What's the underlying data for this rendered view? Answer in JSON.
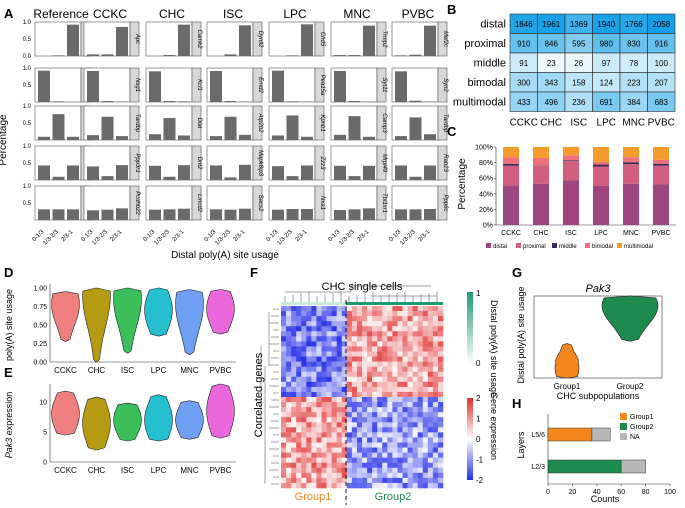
{
  "colors": {
    "types": [
      "#f08080",
      "#b59a14",
      "#3cbf5a",
      "#25bfcf",
      "#6f9ff2",
      "#ea68dc"
    ],
    "dist": {
      "distal": "#9e4682",
      "proximal": "#d35f7e",
      "middle": "#3a2a5a",
      "bimodal": "#f0707a",
      "multimodal": "#f59a2c"
    },
    "group1": "#f4861e",
    "group2": "#1f8a4e",
    "na": "#b8b8b8",
    "bar": "#6a6a6a"
  },
  "panel_labels": {
    "A": "A",
    "B": "B",
    "C": "C",
    "D": "D",
    "E": "E",
    "F": "F",
    "G": "G",
    "H": "H"
  },
  "chart_data": [
    {
      "id": "A",
      "type": "bar",
      "columns": [
        "Reference",
        "CCKC",
        "CHC",
        "ISC",
        "LPC",
        "MNC",
        "PVBC"
      ],
      "rows": [
        "distal",
        "proximal",
        "middle",
        "bimodal",
        "multimodal"
      ],
      "categories": [
        "0-1/3",
        "1/3-2/3",
        "2/3-1"
      ],
      "ylabel": "Percentage",
      "xlabel": "Distal poly(A) site usage",
      "yticks": [
        "0.0",
        "0.5",
        "1.0"
      ],
      "ylim": [
        0,
        1
      ],
      "gene_labels": [
        [
          "distal",
          "Apc",
          "Camk2",
          "Dynll2",
          "Chd5",
          "Trmp2",
          "Mef2c"
        ],
        [
          "proximal",
          "Nsg1",
          "Kcl1",
          "Emd2",
          "Pea15a",
          "Syt11",
          "Syn2"
        ],
        [
          "middle",
          "Tardbp",
          "Dlat",
          "Atp2b2",
          "Kpnb1",
          "Camp3",
          "Tardbp"
        ],
        [
          "bimodal",
          "Ppp3r1",
          "Dnt2",
          "Mapk8ip3",
          "Zzz3",
          "Mrpl49",
          "Rab23"
        ],
        [
          "multimodal",
          "Pcdhb22",
          "Lmcd2",
          "Sacs2",
          "Nxa1",
          "Tbl1xr1",
          "Ppp6c"
        ]
      ],
      "values": [
        [
          [
            0,
            0.02,
            0.97
          ],
          [
            0.05,
            0.05,
            0.9
          ],
          [
            0,
            0.03,
            0.97
          ],
          [
            0,
            0.05,
            0.95
          ],
          [
            0,
            0.02,
            0.98
          ],
          [
            0.03,
            0.03,
            0.94
          ],
          [
            0.02,
            0.04,
            0.94
          ]
        ],
        [
          [
            0.97,
            0.02,
            0
          ],
          [
            0.96,
            0.03,
            0.01
          ],
          [
            0.95,
            0.03,
            0.02
          ],
          [
            0.96,
            0.03,
            0.01
          ],
          [
            0.97,
            0.02,
            0.01
          ],
          [
            0.96,
            0.03,
            0.01
          ],
          [
            0.95,
            0.04,
            0.01
          ]
        ],
        [
          [
            0.1,
            0.8,
            0.1
          ],
          [
            0.15,
            0.72,
            0.12
          ],
          [
            0.18,
            0.68,
            0.14
          ],
          [
            0.12,
            0.72,
            0.16
          ],
          [
            0.14,
            0.76,
            0.1
          ],
          [
            0.16,
            0.74,
            0.1
          ],
          [
            0.12,
            0.7,
            0.18
          ]
        ],
        [
          [
            0.45,
            0.1,
            0.45
          ],
          [
            0.42,
            0.12,
            0.46
          ],
          [
            0.44,
            0.1,
            0.46
          ],
          [
            0.45,
            0.08,
            0.47
          ],
          [
            0.43,
            0.12,
            0.45
          ],
          [
            0.44,
            0.12,
            0.44
          ],
          [
            0.45,
            0.1,
            0.45
          ]
        ],
        [
          [
            0.33,
            0.33,
            0.33
          ],
          [
            0.3,
            0.32,
            0.36
          ],
          [
            0.32,
            0.33,
            0.35
          ],
          [
            0.33,
            0.32,
            0.35
          ],
          [
            0.32,
            0.34,
            0.34
          ],
          [
            0.31,
            0.33,
            0.36
          ],
          [
            0.33,
            0.33,
            0.34
          ]
        ]
      ]
    },
    {
      "id": "B",
      "type": "table",
      "rows": [
        "distal",
        "proximal",
        "middle",
        "bimodal",
        "multimodal"
      ],
      "columns": [
        "CCKC",
        "CHC",
        "ISC",
        "LPC",
        "MNC",
        "PVBC"
      ],
      "values": [
        [
          1846,
          1961,
          1369,
          1940,
          1766,
          2058
        ],
        [
          910,
          846,
          595,
          980,
          830,
          916
        ],
        [
          91,
          23,
          26,
          97,
          78,
          100
        ],
        [
          300,
          343,
          158,
          124,
          223,
          207
        ],
        [
          433,
          496,
          236,
          691,
          384,
          683
        ]
      ]
    },
    {
      "id": "C",
      "type": "bar",
      "stacked": true,
      "categories": [
        "CCKC",
        "CHC",
        "ISC",
        "LPC",
        "MNC",
        "PVBC"
      ],
      "ylabel": "Percentage",
      "yticks": [
        "0%",
        "20%",
        "40%",
        "60%",
        "80%",
        "100%"
      ],
      "ylim": [
        0,
        100
      ],
      "legend": [
        "distal",
        "proximal",
        "middle",
        "bimodal",
        "multimodal"
      ],
      "series": [
        {
          "name": "distal",
          "values": [
            51.0,
            53.0,
            57.0,
            50.0,
            53.0,
            52.0
          ]
        },
        {
          "name": "proximal",
          "values": [
            25.0,
            23.0,
            25.0,
            25.0,
            25.0,
            24.0
          ]
        },
        {
          "name": "middle",
          "values": [
            2.5,
            0.5,
            1.0,
            2.5,
            2.5,
            2.5
          ]
        },
        {
          "name": "bimodal",
          "values": [
            8.5,
            9.5,
            6.5,
            3.5,
            6.5,
            5.0
          ]
        },
        {
          "name": "multimodal",
          "values": [
            13.0,
            14.0,
            10.5,
            19.0,
            13.0,
            16.5
          ]
        }
      ]
    },
    {
      "id": "D",
      "type": "violin",
      "categories": [
        "CCKC",
        "CHC",
        "ISC",
        "LPC",
        "MNC",
        "PVBC"
      ],
      "ylabel": "poly(A) site usage",
      "yticks": [
        "0.00",
        "0.25",
        "0.50",
        "0.75",
        "1.00"
      ],
      "ylim": [
        0,
        1
      ],
      "ranges": [
        [
          0.28,
          0.95
        ],
        [
          0.0,
          1.0
        ],
        [
          0.12,
          1.0
        ],
        [
          0.35,
          1.0
        ],
        [
          0.1,
          0.98
        ],
        [
          0.38,
          0.98
        ]
      ],
      "peaks": [
        0.78,
        0.9,
        0.85,
        0.7,
        0.78,
        0.72
      ]
    },
    {
      "id": "E",
      "type": "violin",
      "categories": [
        "CCKC",
        "CHC",
        "ISC",
        "LPC",
        "MNC",
        "PVBC"
      ],
      "ylabel": "Pak3 expression",
      "yticks": [
        "0",
        "5",
        "10"
      ],
      "ylim": [
        0,
        13
      ],
      "ranges": [
        [
          4.5,
          11.8
        ],
        [
          2.0,
          10.8
        ],
        [
          3.5,
          9.8
        ],
        [
          3.5,
          11.2
        ],
        [
          3.8,
          10.2
        ],
        [
          4.0,
          13.0
        ]
      ],
      "peaks": [
        8.0,
        6.5,
        7.0,
        7.0,
        7.0,
        8.5
      ]
    },
    {
      "id": "F",
      "type": "heatmap",
      "title": "CHC single cells",
      "ylabel": "Correlated genes",
      "groups": [
        "Group1",
        "Group2"
      ],
      "topbar_label": "Distal poly(A) site usage",
      "topbar_ticks": [
        "1",
        "0"
      ],
      "expr_label": "Gene expression",
      "expr_ticks": [
        "2",
        "1",
        "0",
        "-1",
        "-2"
      ]
    },
    {
      "id": "G",
      "type": "violin",
      "title": "Pak3",
      "categories": [
        "Group1",
        "Group2"
      ],
      "xlabel": "CHC subpopulations",
      "ylabel": "Distal poly(A) site usage",
      "ranges": [
        [
          0.0,
          0.42
        ],
        [
          0.45,
          1.0
        ]
      ],
      "peaks": [
        0.12,
        0.88
      ]
    },
    {
      "id": "H",
      "type": "bar",
      "stacked": true,
      "horizontal": true,
      "categories": [
        "L5/6",
        "L2/3"
      ],
      "xlabel": "Counts",
      "ylabel": "Layers",
      "xticks": [
        "0",
        "20",
        "40",
        "60",
        "80",
        "100"
      ],
      "xlim": [
        0,
        100
      ],
      "series": [
        {
          "name": "Group1",
          "values": [
            36,
            0
          ]
        },
        {
          "name": "Group2",
          "values": [
            0,
            60
          ]
        },
        {
          "name": "NA",
          "values": [
            15,
            20
          ]
        }
      ]
    }
  ]
}
